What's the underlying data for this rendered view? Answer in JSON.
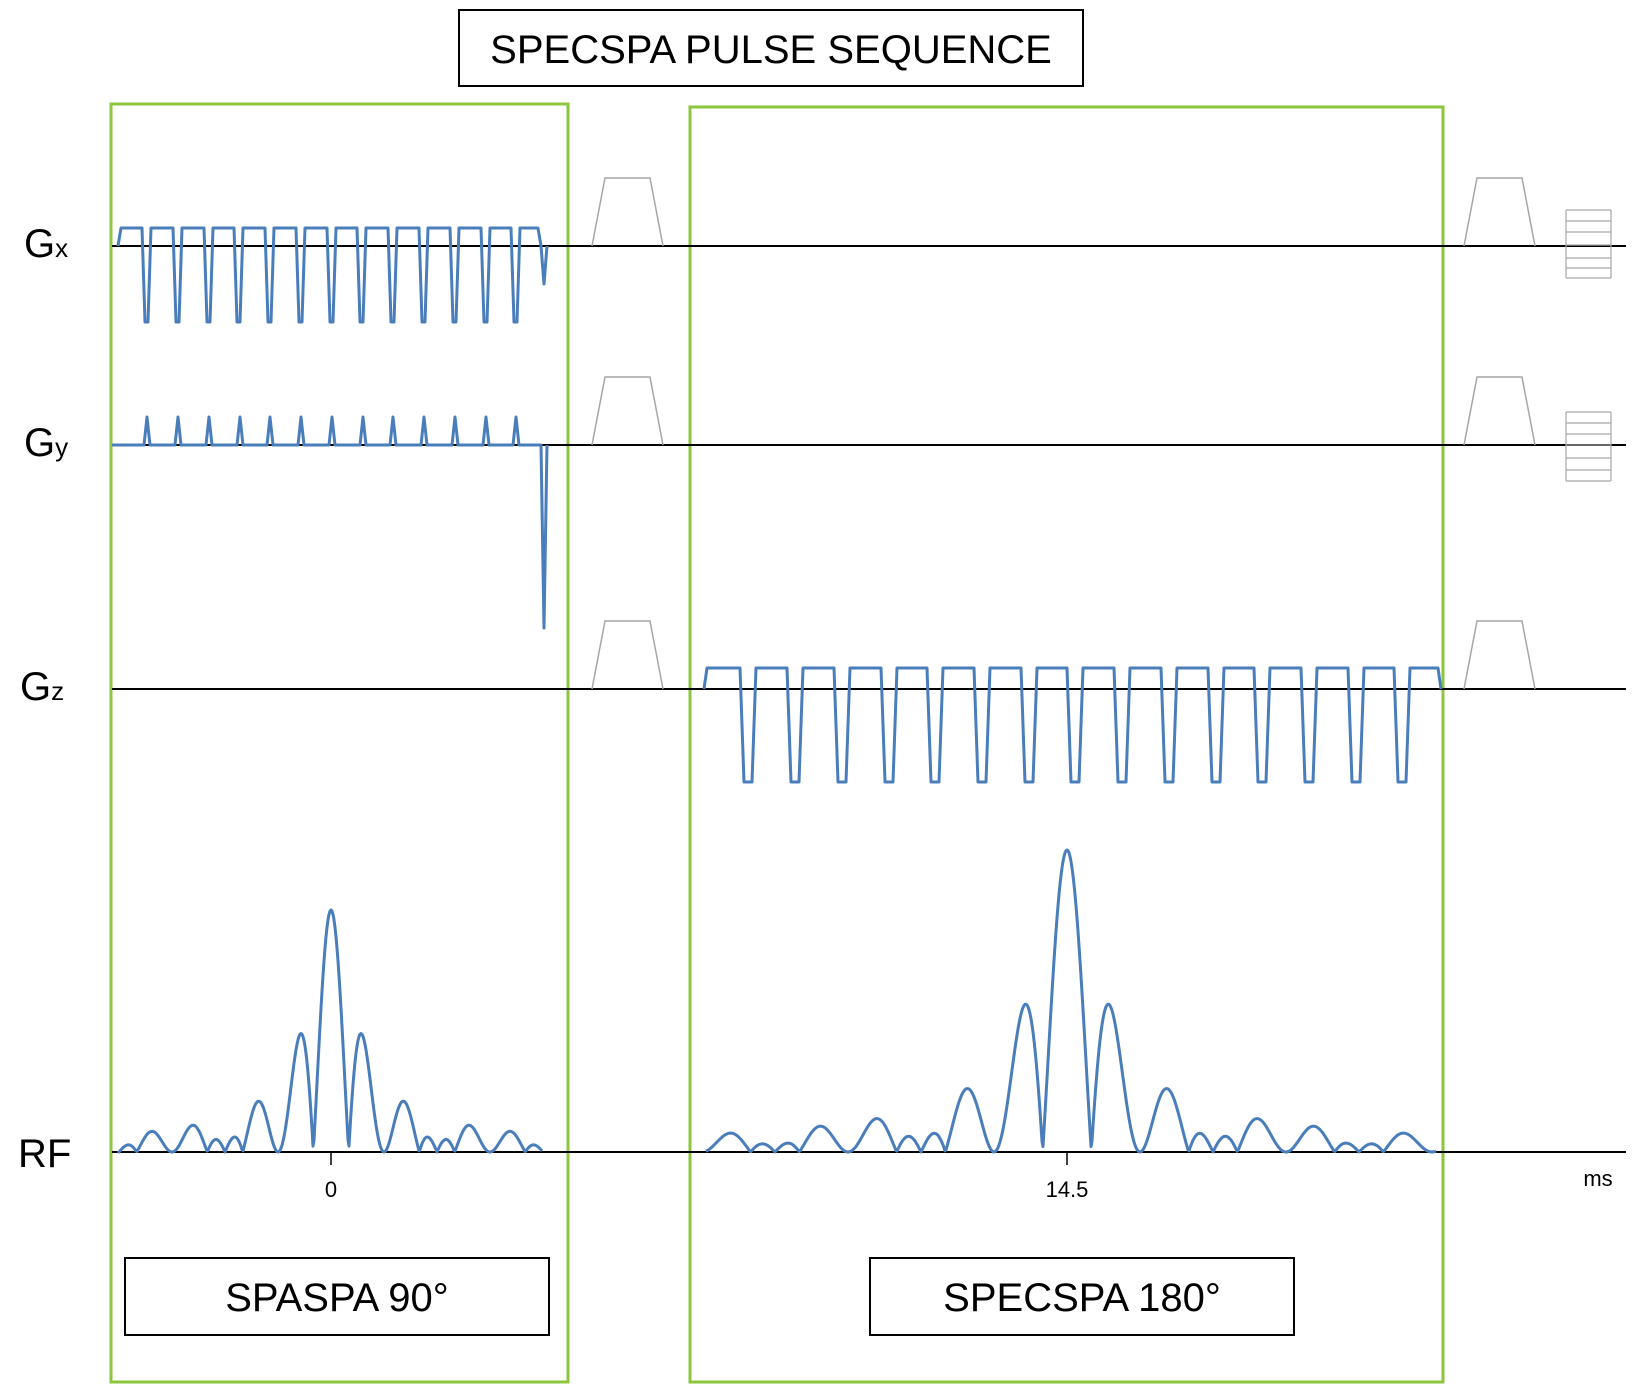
{
  "title": "SPECSPA PULSE SEQUENCE",
  "channels": {
    "gx": {
      "main": "G",
      "sub": "x"
    },
    "gy": {
      "main": "G",
      "sub": "y"
    },
    "gz": {
      "main": "G",
      "sub": "z"
    },
    "rf": {
      "main": "RF"
    }
  },
  "time_axis": {
    "unit": "ms",
    "tick_labels": [
      "0",
      "14.5"
    ]
  },
  "blocks": [
    {
      "label": "SPASPA 90°"
    },
    {
      "label": "SPECSPA 180°"
    }
  ],
  "colors": {
    "waveform": "#4a7ebb",
    "block_border": "#8cc63f",
    "crusher": "#a6a6a6",
    "axis": "#000000"
  }
}
